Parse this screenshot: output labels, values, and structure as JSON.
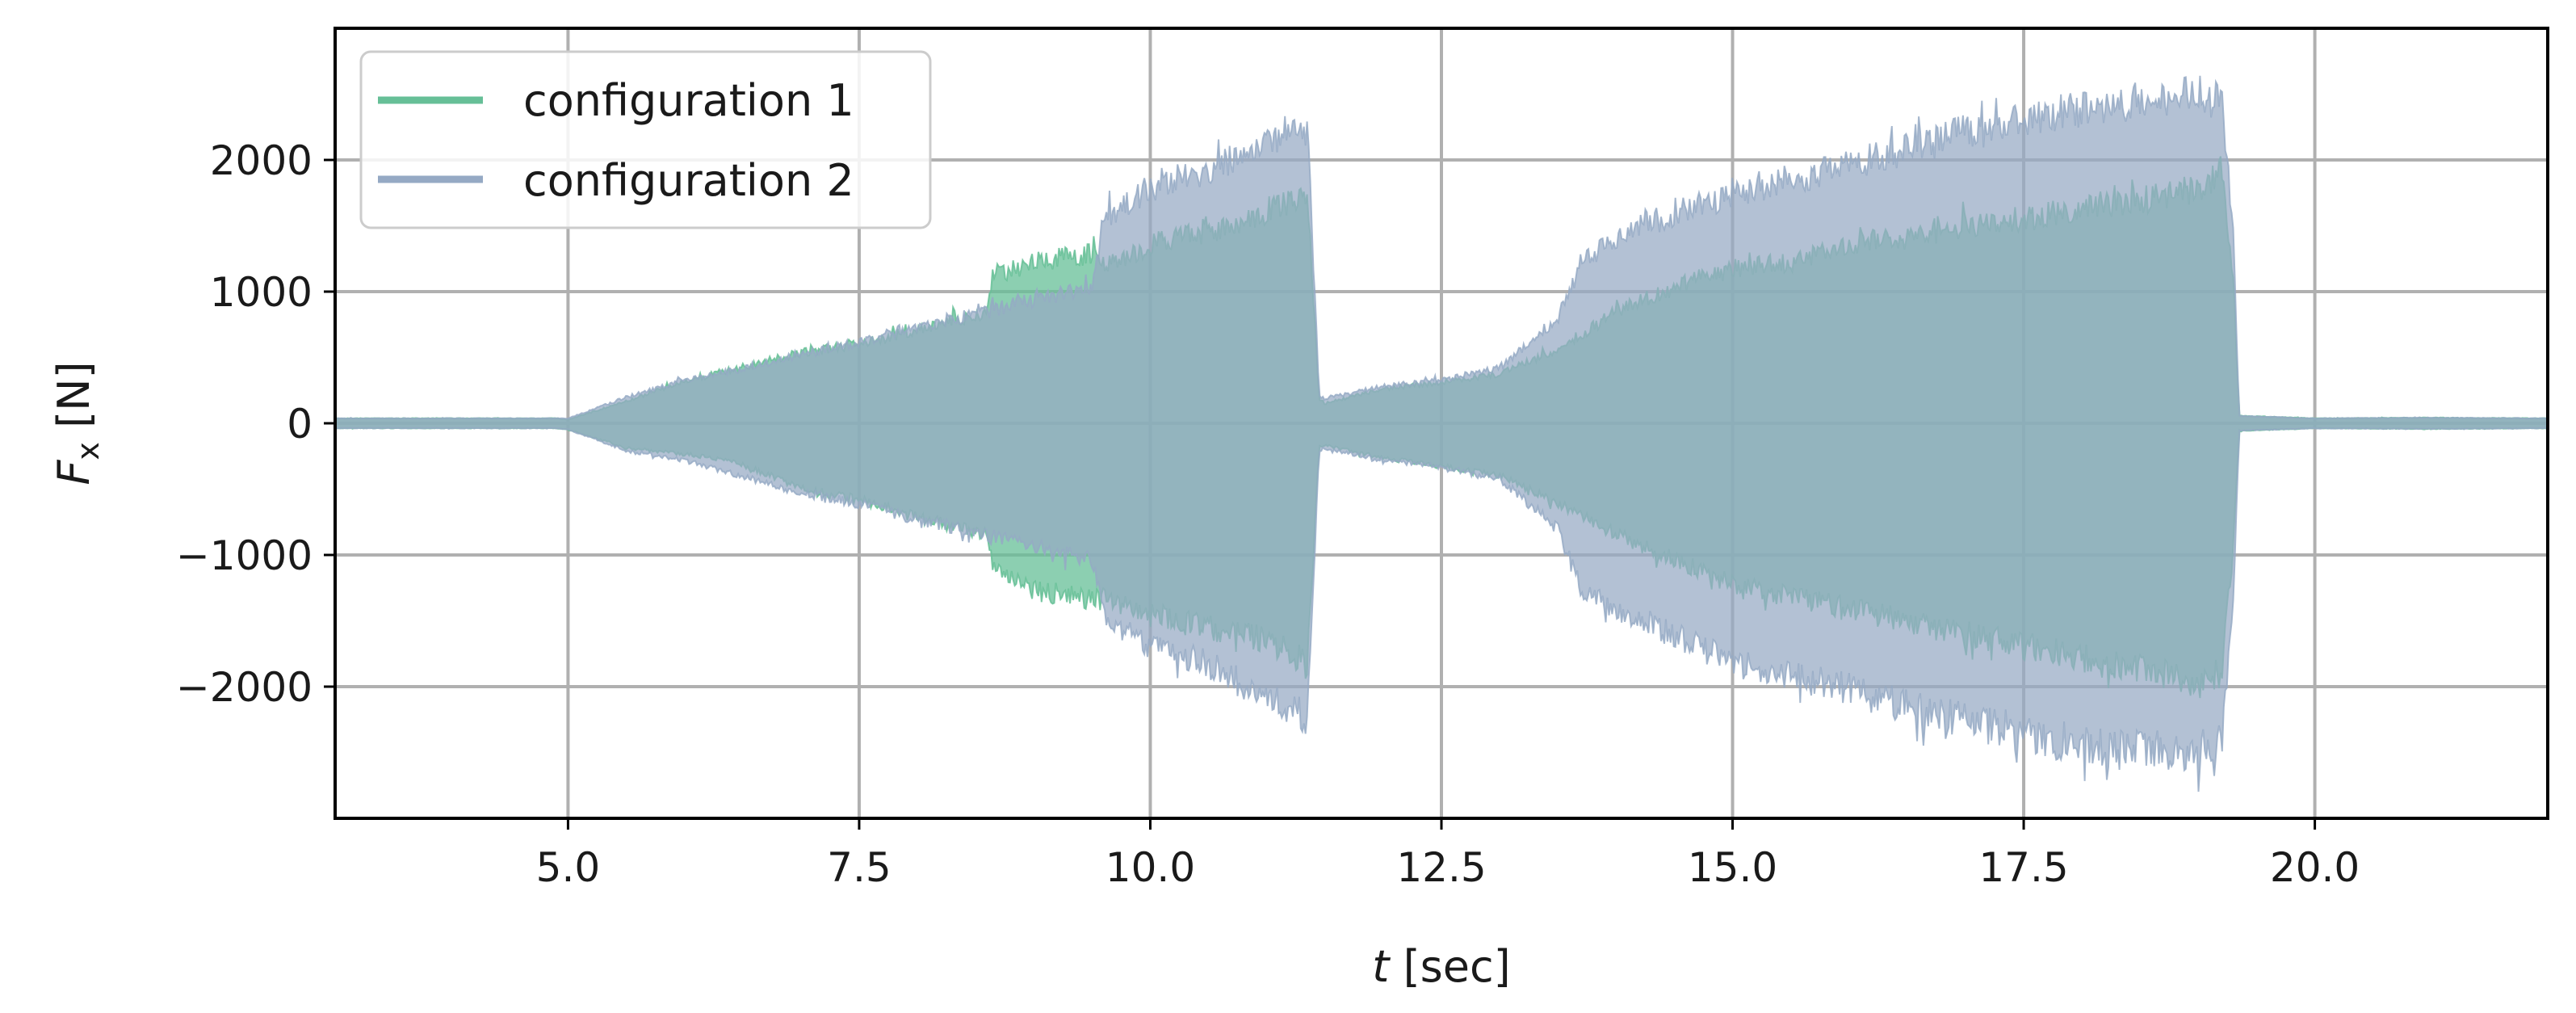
{
  "chart_data": {
    "type": "area",
    "xlabel_var": "t",
    "xlabel_unit": " [sec]",
    "ylabel_var": "F",
    "ylabel_sub": "x",
    "ylabel_unit": " [N]",
    "xlim": [
      3.0,
      22.0
    ],
    "ylim": [
      -3000,
      3000
    ],
    "xticks": [
      5.0,
      7.5,
      10.0,
      12.5,
      15.0,
      17.5,
      20.0
    ],
    "xtick_labels": [
      "5.0",
      "7.5",
      "10.0",
      "12.5",
      "15.0",
      "17.5",
      "20.0"
    ],
    "yticks": [
      2000,
      1000,
      0,
      -1000,
      -2000
    ],
    "ytick_labels": [
      "2000",
      "1000",
      "0",
      "−1000",
      "−2000"
    ],
    "grid": true,
    "legend_position": "top-left",
    "series": [
      {
        "name": "configuration 1",
        "color": "#66bf97",
        "opacity": 0.75,
        "envelope": {
          "t": [
            3.0,
            4.9,
            5.0,
            5.5,
            6.0,
            6.4,
            7.0,
            7.5,
            8.0,
            8.6,
            8.65,
            9.0,
            9.55,
            9.6,
            10.0,
            10.5,
            11.0,
            11.35,
            11.45,
            11.5,
            12.0,
            12.5,
            13.0,
            13.5,
            14.0,
            14.5,
            15.0,
            15.5,
            16.0,
            16.5,
            17.0,
            17.5,
            18.0,
            18.5,
            19.0,
            19.2,
            19.3,
            19.35,
            20.0,
            21.0,
            22.0
          ],
          "upper": [
            40,
            40,
            30,
            180,
            340,
            430,
            570,
            640,
            760,
            900,
            1200,
            1300,
            1380,
            1250,
            1450,
            1550,
            1700,
            1850,
            200,
            160,
            280,
            330,
            400,
            600,
            900,
            1100,
            1250,
            1300,
            1450,
            1500,
            1600,
            1650,
            1750,
            1800,
            1900,
            2050,
            1200,
            60,
            40,
            45,
            40
          ],
          "lower": [
            -40,
            -40,
            -50,
            -200,
            -250,
            -300,
            -520,
            -620,
            -750,
            -900,
            -1150,
            -1350,
            -1430,
            -1400,
            -1550,
            -1650,
            -1750,
            -1950,
            -180,
            -180,
            -280,
            -350,
            -420,
            -650,
            -900,
            -1100,
            -1300,
            -1400,
            -1500,
            -1600,
            -1700,
            -1800,
            -1900,
            -2000,
            -2100,
            -2000,
            -1000,
            -60,
            -40,
            -45,
            -40
          ]
        }
      },
      {
        "name": "configuration 2",
        "color": "#95a9c4",
        "opacity": 0.72,
        "envelope": {
          "t": [
            3.0,
            4.9,
            5.0,
            5.5,
            6.0,
            6.5,
            7.0,
            7.5,
            8.0,
            8.5,
            9.0,
            9.5,
            9.6,
            10.0,
            10.5,
            11.0,
            11.35,
            11.45,
            11.5,
            12.0,
            12.5,
            13.0,
            13.5,
            13.7,
            14.0,
            14.5,
            15.0,
            15.5,
            16.0,
            16.5,
            17.0,
            17.5,
            18.0,
            18.5,
            19.0,
            19.2,
            19.3,
            19.35,
            20.0,
            21.0,
            22.0
          ],
          "upper": [
            40,
            40,
            40,
            210,
            350,
            440,
            560,
            650,
            790,
            880,
            1000,
            1100,
            1650,
            1900,
            2050,
            2250,
            2400,
            220,
            200,
            300,
            350,
            450,
            850,
            1300,
            1500,
            1700,
            1850,
            1950,
            2100,
            2200,
            2350,
            2450,
            2550,
            2600,
            2650,
            2600,
            1500,
            60,
            40,
            45,
            40
          ],
          "lower": [
            -40,
            -40,
            -50,
            -220,
            -300,
            -430,
            -560,
            -650,
            -780,
            -880,
            -1000,
            -1100,
            -1550,
            -1800,
            -1950,
            -2200,
            -2400,
            -220,
            -200,
            -300,
            -350,
            -450,
            -850,
            -1350,
            -1500,
            -1700,
            -1950,
            -2050,
            -2150,
            -2300,
            -2400,
            -2500,
            -2600,
            -2650,
            -2650,
            -2550,
            -1500,
            -60,
            -40,
            -45,
            -40
          ]
        }
      }
    ]
  }
}
